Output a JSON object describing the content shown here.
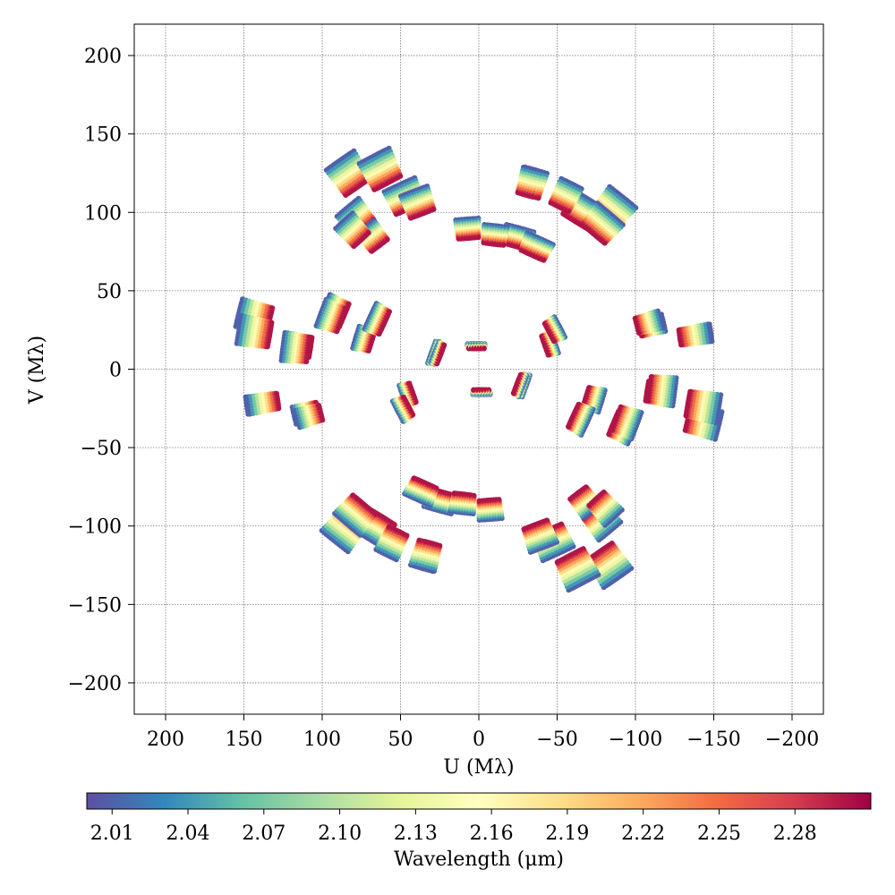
{
  "chart_data": {
    "type": "scatter",
    "title": "",
    "xlabel": "U (Mλ)",
    "ylabel": "V (Mλ)",
    "xlim": [
      220,
      -220
    ],
    "ylim": [
      -220,
      220
    ],
    "x_reversed": true,
    "grid": true,
    "xticks": [
      200,
      150,
      100,
      50,
      0,
      -50,
      -100,
      -150,
      -200
    ],
    "yticks": [
      200,
      150,
      100,
      50,
      0,
      -50,
      -100,
      -150,
      -200
    ],
    "xtick_labels": [
      "200",
      "150",
      "100",
      "50",
      "0",
      "−50",
      "−100",
      "−150",
      "−200"
    ],
    "ytick_labels": [
      "200",
      "150",
      "100",
      "50",
      "0",
      "−50",
      "−100",
      "−150",
      "−200"
    ],
    "colorbar": {
      "label": "Wavelength (μm)",
      "orientation": "horizontal",
      "placement": "bottom",
      "range": [
        2.0,
        2.31
      ],
      "ticks": [
        2.01,
        2.04,
        2.07,
        2.1,
        2.13,
        2.16,
        2.19,
        2.22,
        2.25,
        2.28
      ],
      "tick_labels": [
        "2.01",
        "2.04",
        "2.07",
        "2.10",
        "2.13",
        "2.16",
        "2.19",
        "2.22",
        "2.25",
        "2.28"
      ],
      "colormap": "Spectral_r",
      "colormap_stops": [
        "#5e4fa2",
        "#3288bd",
        "#66c2a5",
        "#abdda4",
        "#e6f598",
        "#ffffbf",
        "#fee08b",
        "#fdae61",
        "#f46d43",
        "#d53e4f",
        "#9e0142"
      ]
    },
    "wavelength_channels_um": [
      2.01,
      2.04,
      2.07,
      2.1,
      2.13,
      2.16,
      2.19,
      2.22,
      2.25,
      2.28,
      2.3
    ],
    "series": [
      {
        "u": 85,
        "v": 122,
        "t": [
          -1,
          0,
          1,
          2,
          3
        ]
      },
      {
        "u": 50,
        "v": 108,
        "t": [
          -1,
          0,
          1,
          2,
          3
        ]
      },
      {
        "u": 79,
        "v": 95,
        "t": [
          -1,
          0,
          1,
          2
        ]
      },
      {
        "u": 65,
        "v": 86,
        "t": [
          -2,
          -1,
          0
        ]
      },
      {
        "u": -23,
        "v": 84,
        "t": [
          -1,
          0,
          1,
          2
        ]
      },
      {
        "u": -34,
        "v": 118,
        "t": [
          -1,
          0,
          1
        ]
      },
      {
        "u": -63,
        "v": 102,
        "t": [
          -1,
          0,
          1,
          2,
          3
        ]
      },
      {
        "u": -83,
        "v": 104,
        "t": [
          -1,
          0,
          1,
          2,
          3
        ]
      },
      {
        "u": 7,
        "v": 89,
        "t": [
          -1,
          0,
          1
        ]
      },
      {
        "u": 142,
        "v": 35,
        "t": [
          -2,
          -1,
          0,
          1
        ]
      },
      {
        "u": 114,
        "v": 18,
        "t": [
          -2,
          -1,
          0
        ]
      },
      {
        "u": 91,
        "v": 38,
        "t": [
          -2,
          -1,
          0,
          1
        ]
      },
      {
        "u": 72,
        "v": 22,
        "t": [
          -2,
          -1,
          0
        ]
      },
      {
        "u": 138,
        "v": -20,
        "t": [
          -1,
          0
        ]
      },
      {
        "u": 110,
        "v": -26,
        "t": [
          -1,
          0
        ]
      },
      {
        "u": 28,
        "v": 10,
        "t": [
          -1,
          0,
          1
        ]
      },
      {
        "u": 0,
        "v": 15,
        "t": [
          -1,
          0
        ]
      },
      {
        "u": 0,
        "v": -14,
        "t": [
          -1,
          0
        ]
      },
      {
        "u": -26,
        "v": -10,
        "t": [
          -1,
          0,
          1
        ]
      },
      {
        "u": -45,
        "v": 16,
        "t": [
          -1,
          0,
          1
        ]
      },
      {
        "u": -65,
        "v": -30,
        "t": [
          -1,
          0,
          1,
          2
        ]
      },
      {
        "u": -93,
        "v": -35,
        "t": [
          -2,
          -1,
          0,
          1
        ]
      },
      {
        "u": -116,
        "v": -15,
        "t": [
          -2,
          -1,
          0,
          1
        ]
      },
      {
        "u": -142,
        "v": -25,
        "t": [
          -2,
          -1,
          0,
          1
        ]
      },
      {
        "u": -108,
        "v": 28,
        "t": [
          -1,
          0
        ]
      },
      {
        "u": -137,
        "v": 20,
        "t": [
          -1,
          0
        ]
      },
      {
        "u": 48,
        "v": -25,
        "t": [
          -1,
          0,
          1
        ]
      },
      {
        "u": 78,
        "v": -92,
        "t": [
          -2,
          -1,
          0,
          1,
          2
        ]
      },
      {
        "u": 55,
        "v": -110,
        "t": [
          -1,
          0,
          1
        ]
      },
      {
        "u": 35,
        "v": -78,
        "t": [
          -1,
          0,
          1,
          2
        ]
      },
      {
        "u": 10,
        "v": -85,
        "t": [
          -1,
          0,
          1
        ]
      },
      {
        "u": 33,
        "v": -118,
        "t": [
          -1,
          0
        ]
      },
      {
        "u": -40,
        "v": -105,
        "t": [
          -1,
          0,
          1,
          2
        ]
      },
      {
        "u": -65,
        "v": -125,
        "t": [
          -1,
          0,
          1,
          2,
          3
        ]
      },
      {
        "u": -80,
        "v": -88,
        "t": [
          -1,
          0,
          1
        ]
      }
    ]
  }
}
